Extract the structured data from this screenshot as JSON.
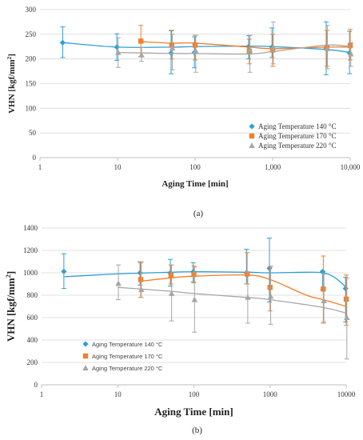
{
  "chart_data": [
    {
      "type": "scatter",
      "title": "",
      "xlabel": "Aging Time [min]",
      "ylabel": "VHN [kgf/mm",
      "ylabel_sup": "2",
      "ylabel_close": "]",
      "xscale": "log",
      "xlim": [
        1,
        10000
      ],
      "ylim": [
        0,
        300
      ],
      "xticks": [
        1,
        10,
        100,
        1000,
        10000
      ],
      "xtick_labels": [
        "1",
        "10",
        "100",
        "1,000",
        "10,000"
      ],
      "yticks": [
        0,
        50,
        100,
        150,
        200,
        250,
        300
      ],
      "ytick_labels": [
        "0",
        "50",
        "100",
        "150",
        "200",
        "250",
        "300"
      ],
      "grid": "horizontal",
      "legend_position": "bottom-right",
      "caption": "(a)",
      "series": [
        {
          "name": "Aging Temperature 140 °C",
          "marker": "diamond",
          "color": "#2E9FD6",
          "x": [
            2,
            10,
            50,
            100,
            500,
            1000,
            5000,
            10000
          ],
          "y": [
            233,
            224,
            212,
            213,
            225,
            224,
            222,
            212
          ],
          "err_low": [
            203,
            197,
            170,
            182,
            200,
            203,
            168,
            170
          ],
          "err_high": [
            265,
            251,
            257,
            245,
            247,
            263,
            275,
            256
          ],
          "trend": [
            [
              2,
              233
            ],
            [
              10,
              224
            ],
            [
              50,
              224
            ],
            [
              100,
              225
            ],
            [
              500,
              226
            ],
            [
              1000,
              225
            ],
            [
              5000,
              219
            ],
            [
              10000,
              213
            ]
          ]
        },
        {
          "name": "Aging Temperature 170 °C",
          "marker": "square",
          "color": "#F07F2A",
          "x": [
            20,
            50,
            100,
            500,
            1000,
            5000,
            10000
          ],
          "y": [
            236,
            228,
            228,
            216,
            218,
            223,
            227
          ],
          "err_low": [
            205,
            200,
            198,
            190,
            185,
            185,
            198
          ],
          "err_high": [
            268,
            258,
            248,
            240,
            250,
            258,
            260
          ],
          "trend": [
            [
              20,
              235
            ],
            [
              50,
              232
            ],
            [
              100,
              232
            ],
            [
              500,
              224
            ],
            [
              1000,
              221
            ],
            [
              5000,
              224
            ],
            [
              10000,
              224
            ]
          ]
        },
        {
          "name": "Aging Temperature 220 °C",
          "marker": "triangle",
          "color": "#A6A6A6",
          "x": [
            10,
            20,
            50,
            100,
            500,
            1000,
            5000,
            10000
          ],
          "y": [
            213,
            208,
            222,
            216,
            218,
            224,
            221,
            210
          ],
          "err_low": [
            183,
            195,
            178,
            173,
            173,
            190,
            180,
            185
          ],
          "err_high": [
            243,
            223,
            250,
            248,
            248,
            275,
            268,
            233
          ],
          "trend": [
            [
              10,
              213
            ],
            [
              50,
              211
            ],
            [
              100,
              211
            ],
            [
              500,
              210
            ],
            [
              1000,
              215
            ],
            [
              5000,
              228
            ],
            [
              10000,
              225
            ]
          ]
        }
      ]
    },
    {
      "type": "scatter",
      "title": "",
      "xlabel": "Aging Time [min]",
      "ylabel": "VHN [kgf/mm",
      "ylabel_sup": "2",
      "ylabel_close": "]",
      "xscale": "log",
      "xlim": [
        1,
        10000
      ],
      "ylim": [
        0,
        1400
      ],
      "xticks": [
        1,
        10,
        100,
        1000,
        10000
      ],
      "xtick_labels": [
        "1",
        "10",
        "100",
        "1000",
        "10000"
      ],
      "yticks": [
        0,
        200,
        400,
        600,
        800,
        1000,
        1200,
        1400
      ],
      "ytick_labels": [
        "0",
        "200",
        "400",
        "600",
        "800",
        "1000",
        "1200",
        "1400"
      ],
      "grid": "horizontal",
      "legend_position": "bottom-left",
      "caption": "(b)",
      "series": [
        {
          "name": "Aging Temperature 140 °C",
          "marker": "diamond",
          "color": "#2E9FD6",
          "x": [
            2,
            20,
            50,
            100,
            500,
            1000,
            5000,
            10000
          ],
          "y": [
            1012,
            1000,
            998,
            1010,
            1000,
            1040,
            1010,
            860
          ],
          "err_low": [
            860,
            890,
            880,
            920,
            900,
            740,
            850,
            560
          ],
          "err_high": [
            1170,
            1100,
            1120,
            1090,
            1210,
            1310,
            1020,
            960
          ],
          "trend": [
            [
              2,
              965
            ],
            [
              10,
              990
            ],
            [
              50,
              1005
            ],
            [
              100,
              1010
            ],
            [
              500,
              1005
            ],
            [
              1000,
              1000
            ],
            [
              3000,
              1005
            ],
            [
              5000,
              1000
            ],
            [
              7000,
              960
            ],
            [
              10000,
              870
            ]
          ]
        },
        {
          "name": "Aging Temperature 170 °C",
          "marker": "square",
          "color": "#F07F2A",
          "x": [
            20,
            50,
            100,
            500,
            1000,
            5000,
            10000
          ],
          "y": [
            940,
            975,
            985,
            990,
            870,
            855,
            765
          ],
          "err_low": [
            780,
            900,
            910,
            900,
            660,
            550,
            530
          ],
          "err_high": [
            1090,
            1070,
            1060,
            1180,
            1050,
            1150,
            980
          ],
          "trend": [
            [
              20,
              925
            ],
            [
              50,
              955
            ],
            [
              100,
              970
            ],
            [
              500,
              980
            ],
            [
              1000,
              940
            ],
            [
              3000,
              800
            ],
            [
              5000,
              760
            ],
            [
              10000,
              700
            ]
          ]
        },
        {
          "name": "Aging Temperature 220 °C",
          "marker": "triangle",
          "color": "#A6A6A6",
          "x": [
            10,
            20,
            50,
            100,
            500,
            1000,
            5000,
            10000
          ],
          "y": [
            905,
            850,
            815,
            760,
            780,
            790,
            750,
            600
          ],
          "err_low": [
            760,
            780,
            570,
            470,
            550,
            540,
            560,
            230
          ],
          "err_high": [
            1070,
            1100,
            1070,
            1050,
            1010,
            1060,
            990,
            950
          ],
          "trend": [
            [
              10,
              870
            ],
            [
              50,
              835
            ],
            [
              100,
              815
            ],
            [
              500,
              780
            ],
            [
              1000,
              760
            ],
            [
              5000,
              690
            ],
            [
              10000,
              640
            ]
          ]
        }
      ]
    }
  ]
}
